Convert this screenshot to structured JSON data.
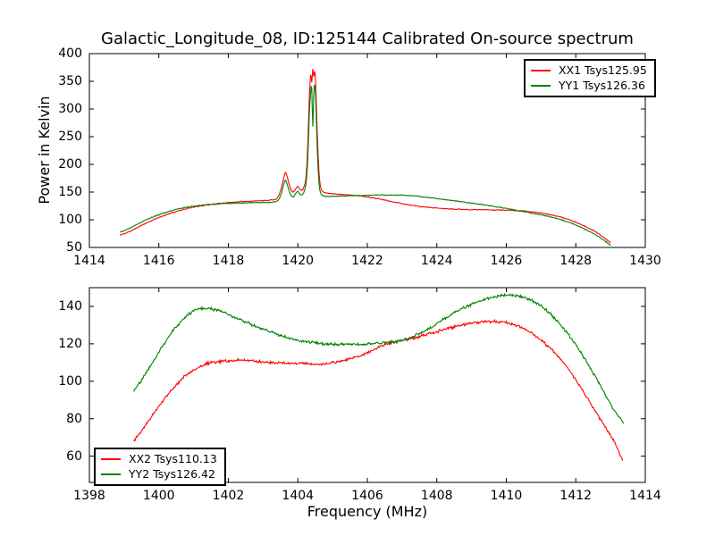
{
  "chart_data": [
    {
      "type": "line",
      "panel": "top",
      "title": "Galactic_Longitude_08, ID:125144 Calibrated On-source spectrum",
      "xlabel": "",
      "ylabel": "Power in Kelvin",
      "xlim": [
        1414,
        1430
      ],
      "ylim": [
        50,
        400
      ],
      "xticks": [
        1414,
        1416,
        1418,
        1420,
        1422,
        1424,
        1426,
        1428,
        1430
      ],
      "yticks": [
        50,
        100,
        150,
        200,
        250,
        300,
        350,
        400
      ],
      "grid": false,
      "legend_position": "upper right",
      "series": [
        {
          "id": "xx1",
          "name": "XX1 Tsys125.95",
          "color": "#ff0000",
          "noise": 1.0,
          "points": [
            [
              1414.88,
              72
            ],
            [
              1415.2,
              80
            ],
            [
              1415.6,
              93
            ],
            [
              1416.0,
              104
            ],
            [
              1416.4,
              113
            ],
            [
              1416.8,
              120
            ],
            [
              1417.2,
              125
            ],
            [
              1417.6,
              128.5
            ],
            [
              1418.0,
              131
            ],
            [
              1418.4,
              133
            ],
            [
              1418.8,
              134
            ],
            [
              1419.2,
              135.5
            ],
            [
              1419.4,
              139
            ],
            [
              1419.5,
              152
            ],
            [
              1419.58,
              172
            ],
            [
              1419.64,
              185
            ],
            [
              1419.7,
              176
            ],
            [
              1419.78,
              158
            ],
            [
              1419.86,
              150
            ],
            [
              1419.94,
              156
            ],
            [
              1420.0,
              160
            ],
            [
              1420.08,
              154
            ],
            [
              1420.16,
              157
            ],
            [
              1420.24,
              180
            ],
            [
              1420.29,
              240
            ],
            [
              1420.33,
              320
            ],
            [
              1420.37,
              362
            ],
            [
              1420.4,
              348
            ],
            [
              1420.43,
              372
            ],
            [
              1420.46,
              358
            ],
            [
              1420.49,
              368
            ],
            [
              1420.52,
              335
            ],
            [
              1420.56,
              255
            ],
            [
              1420.61,
              185
            ],
            [
              1420.66,
              158
            ],
            [
              1420.72,
              151
            ],
            [
              1420.85,
              148
            ],
            [
              1421.1,
              146.5
            ],
            [
              1421.5,
              144.5
            ],
            [
              1421.9,
              142
            ],
            [
              1422.3,
              138
            ],
            [
              1422.7,
              133
            ],
            [
              1423.1,
              128
            ],
            [
              1423.5,
              124
            ],
            [
              1423.9,
              121.5
            ],
            [
              1424.4,
              119.5
            ],
            [
              1424.9,
              118.5
            ],
            [
              1425.4,
              118
            ],
            [
              1425.9,
              117.5
            ],
            [
              1426.3,
              116.5
            ],
            [
              1426.7,
              114.5
            ],
            [
              1427.1,
              111
            ],
            [
              1427.5,
              106
            ],
            [
              1427.9,
              98
            ],
            [
              1428.3,
              87
            ],
            [
              1428.65,
              75
            ],
            [
              1429.0,
              58.5
            ]
          ]
        },
        {
          "id": "yy1",
          "name": "YY1 Tsys126.36",
          "color": "#008000",
          "noise": 1.0,
          "points": [
            [
              1414.88,
              77.5
            ],
            [
              1415.2,
              86
            ],
            [
              1415.6,
              99
            ],
            [
              1416.0,
              109
            ],
            [
              1416.4,
              117
            ],
            [
              1416.8,
              122.5
            ],
            [
              1417.2,
              126
            ],
            [
              1417.6,
              128
            ],
            [
              1418.0,
              129.5
            ],
            [
              1418.4,
              130.5
            ],
            [
              1418.8,
              131
            ],
            [
              1419.2,
              131.5
            ],
            [
              1419.4,
              134
            ],
            [
              1419.5,
              143
            ],
            [
              1419.58,
              160
            ],
            [
              1419.64,
              171
            ],
            [
              1419.7,
              163
            ],
            [
              1419.78,
              147
            ],
            [
              1419.86,
              141
            ],
            [
              1419.94,
              147
            ],
            [
              1420.0,
              151
            ],
            [
              1420.08,
              145
            ],
            [
              1420.16,
              148
            ],
            [
              1420.24,
              168
            ],
            [
              1420.29,
              215
            ],
            [
              1420.33,
              290
            ],
            [
              1420.37,
              330
            ],
            [
              1420.4,
              338
            ],
            [
              1420.43,
              268
            ],
            [
              1420.46,
              332
            ],
            [
              1420.49,
              342
            ],
            [
              1420.52,
              310
            ],
            [
              1420.56,
              225
            ],
            [
              1420.61,
              165
            ],
            [
              1420.66,
              148
            ],
            [
              1420.72,
              144
            ],
            [
              1420.85,
              142
            ],
            [
              1421.1,
              142.5
            ],
            [
              1421.5,
              143.5
            ],
            [
              1421.9,
              144
            ],
            [
              1422.3,
              144.5
            ],
            [
              1422.7,
              144.5
            ],
            [
              1423.1,
              144
            ],
            [
              1423.5,
              142
            ],
            [
              1423.9,
              139
            ],
            [
              1424.4,
              135
            ],
            [
              1424.9,
              131
            ],
            [
              1425.4,
              126.5
            ],
            [
              1425.9,
              121.5
            ],
            [
              1426.3,
              117
            ],
            [
              1426.7,
              112.5
            ],
            [
              1427.1,
              107.5
            ],
            [
              1427.5,
              101.5
            ],
            [
              1427.9,
              93
            ],
            [
              1428.3,
              82
            ],
            [
              1428.65,
              70
            ],
            [
              1429.0,
              54
            ]
          ]
        }
      ]
    },
    {
      "type": "line",
      "panel": "bottom",
      "title": "",
      "xlabel": "Frequency (MHz)",
      "ylabel": "",
      "xlim": [
        1398,
        1414
      ],
      "ylim": [
        46,
        150
      ],
      "xticks": [
        1398,
        1400,
        1402,
        1404,
        1406,
        1408,
        1410,
        1412,
        1414
      ],
      "yticks": [
        60,
        80,
        100,
        120,
        140
      ],
      "grid": false,
      "legend_position": "lower left",
      "series": [
        {
          "id": "xx2",
          "name": "XX2 Tsys110.13",
          "color": "#ff0000",
          "noise": 0.9,
          "points": [
            [
              1399.28,
              68
            ],
            [
              1399.6,
              76
            ],
            [
              1399.9,
              84
            ],
            [
              1400.2,
              91.5
            ],
            [
              1400.5,
              98
            ],
            [
              1400.8,
              103.5
            ],
            [
              1401.1,
              107
            ],
            [
              1401.4,
              109.5
            ],
            [
              1401.7,
              110.5
            ],
            [
              1402.0,
              111
            ],
            [
              1402.3,
              111.2
            ],
            [
              1402.6,
              111
            ],
            [
              1402.9,
              110.5
            ],
            [
              1403.2,
              110
            ],
            [
              1403.5,
              109.8
            ],
            [
              1403.8,
              109.6
            ],
            [
              1404.1,
              109.5
            ],
            [
              1404.4,
              109.3
            ],
            [
              1404.7,
              109.2
            ],
            [
              1405.0,
              110
            ],
            [
              1405.3,
              111
            ],
            [
              1405.6,
              112.5
            ],
            [
              1405.9,
              114.5
            ],
            [
              1406.2,
              117
            ],
            [
              1406.5,
              119.5
            ],
            [
              1406.8,
              121
            ],
            [
              1407.1,
              122
            ],
            [
              1407.4,
              123.5
            ],
            [
              1407.7,
              125
            ],
            [
              1408.0,
              126.5
            ],
            [
              1408.3,
              128
            ],
            [
              1408.6,
              129.5
            ],
            [
              1408.9,
              130.7
            ],
            [
              1409.2,
              131.5
            ],
            [
              1409.5,
              132
            ],
            [
              1409.8,
              131.8
            ],
            [
              1410.1,
              131
            ],
            [
              1410.4,
              129
            ],
            [
              1410.7,
              126
            ],
            [
              1411.0,
              122
            ],
            [
              1411.3,
              117
            ],
            [
              1411.6,
              111
            ],
            [
              1411.9,
              103.5
            ],
            [
              1412.2,
              95
            ],
            [
              1412.5,
              86
            ],
            [
              1412.8,
              77
            ],
            [
              1413.1,
              68
            ],
            [
              1413.35,
              57.5
            ]
          ]
        },
        {
          "id": "yy2",
          "name": "YY2 Tsys126.42",
          "color": "#008000",
          "noise": 0.9,
          "points": [
            [
              1399.28,
              95
            ],
            [
              1399.55,
              102
            ],
            [
              1399.85,
              111
            ],
            [
              1400.15,
              120
            ],
            [
              1400.45,
              128
            ],
            [
              1400.75,
              134
            ],
            [
              1401.05,
              138
            ],
            [
              1401.3,
              139
            ],
            [
              1401.55,
              138.5
            ],
            [
              1401.85,
              137
            ],
            [
              1402.15,
              134.5
            ],
            [
              1402.45,
              132
            ],
            [
              1402.75,
              129.5
            ],
            [
              1403.05,
              127.5
            ],
            [
              1403.35,
              125.5
            ],
            [
              1403.65,
              123.5
            ],
            [
              1403.95,
              122
            ],
            [
              1404.25,
              121
            ],
            [
              1404.55,
              120.5
            ],
            [
              1404.85,
              120
            ],
            [
              1405.15,
              119.8
            ],
            [
              1405.45,
              119.7
            ],
            [
              1405.75,
              119.8
            ],
            [
              1406.05,
              120
            ],
            [
              1406.35,
              120.3
            ],
            [
              1406.65,
              120.8
            ],
            [
              1406.95,
              121.8
            ],
            [
              1407.25,
              123.5
            ],
            [
              1407.55,
              126
            ],
            [
              1407.85,
              129
            ],
            [
              1408.15,
              132.5
            ],
            [
              1408.45,
              136
            ],
            [
              1408.75,
              139
            ],
            [
              1409.05,
              141.5
            ],
            [
              1409.35,
              143.5
            ],
            [
              1409.65,
              145
            ],
            [
              1409.95,
              146
            ],
            [
              1410.25,
              145.8
            ],
            [
              1410.55,
              144.5
            ],
            [
              1410.85,
              142
            ],
            [
              1411.15,
              138
            ],
            [
              1411.45,
              132.5
            ],
            [
              1411.75,
              126
            ],
            [
              1412.05,
              118
            ],
            [
              1412.35,
              109
            ],
            [
              1412.65,
              99.5
            ],
            [
              1412.95,
              89.5
            ],
            [
              1413.2,
              82
            ],
            [
              1413.38,
              77.5
            ]
          ]
        }
      ]
    }
  ],
  "colors": {
    "frame": "#000000",
    "background": "#ffffff",
    "xx_red": "#ff0000",
    "yy_green": "#008000"
  }
}
